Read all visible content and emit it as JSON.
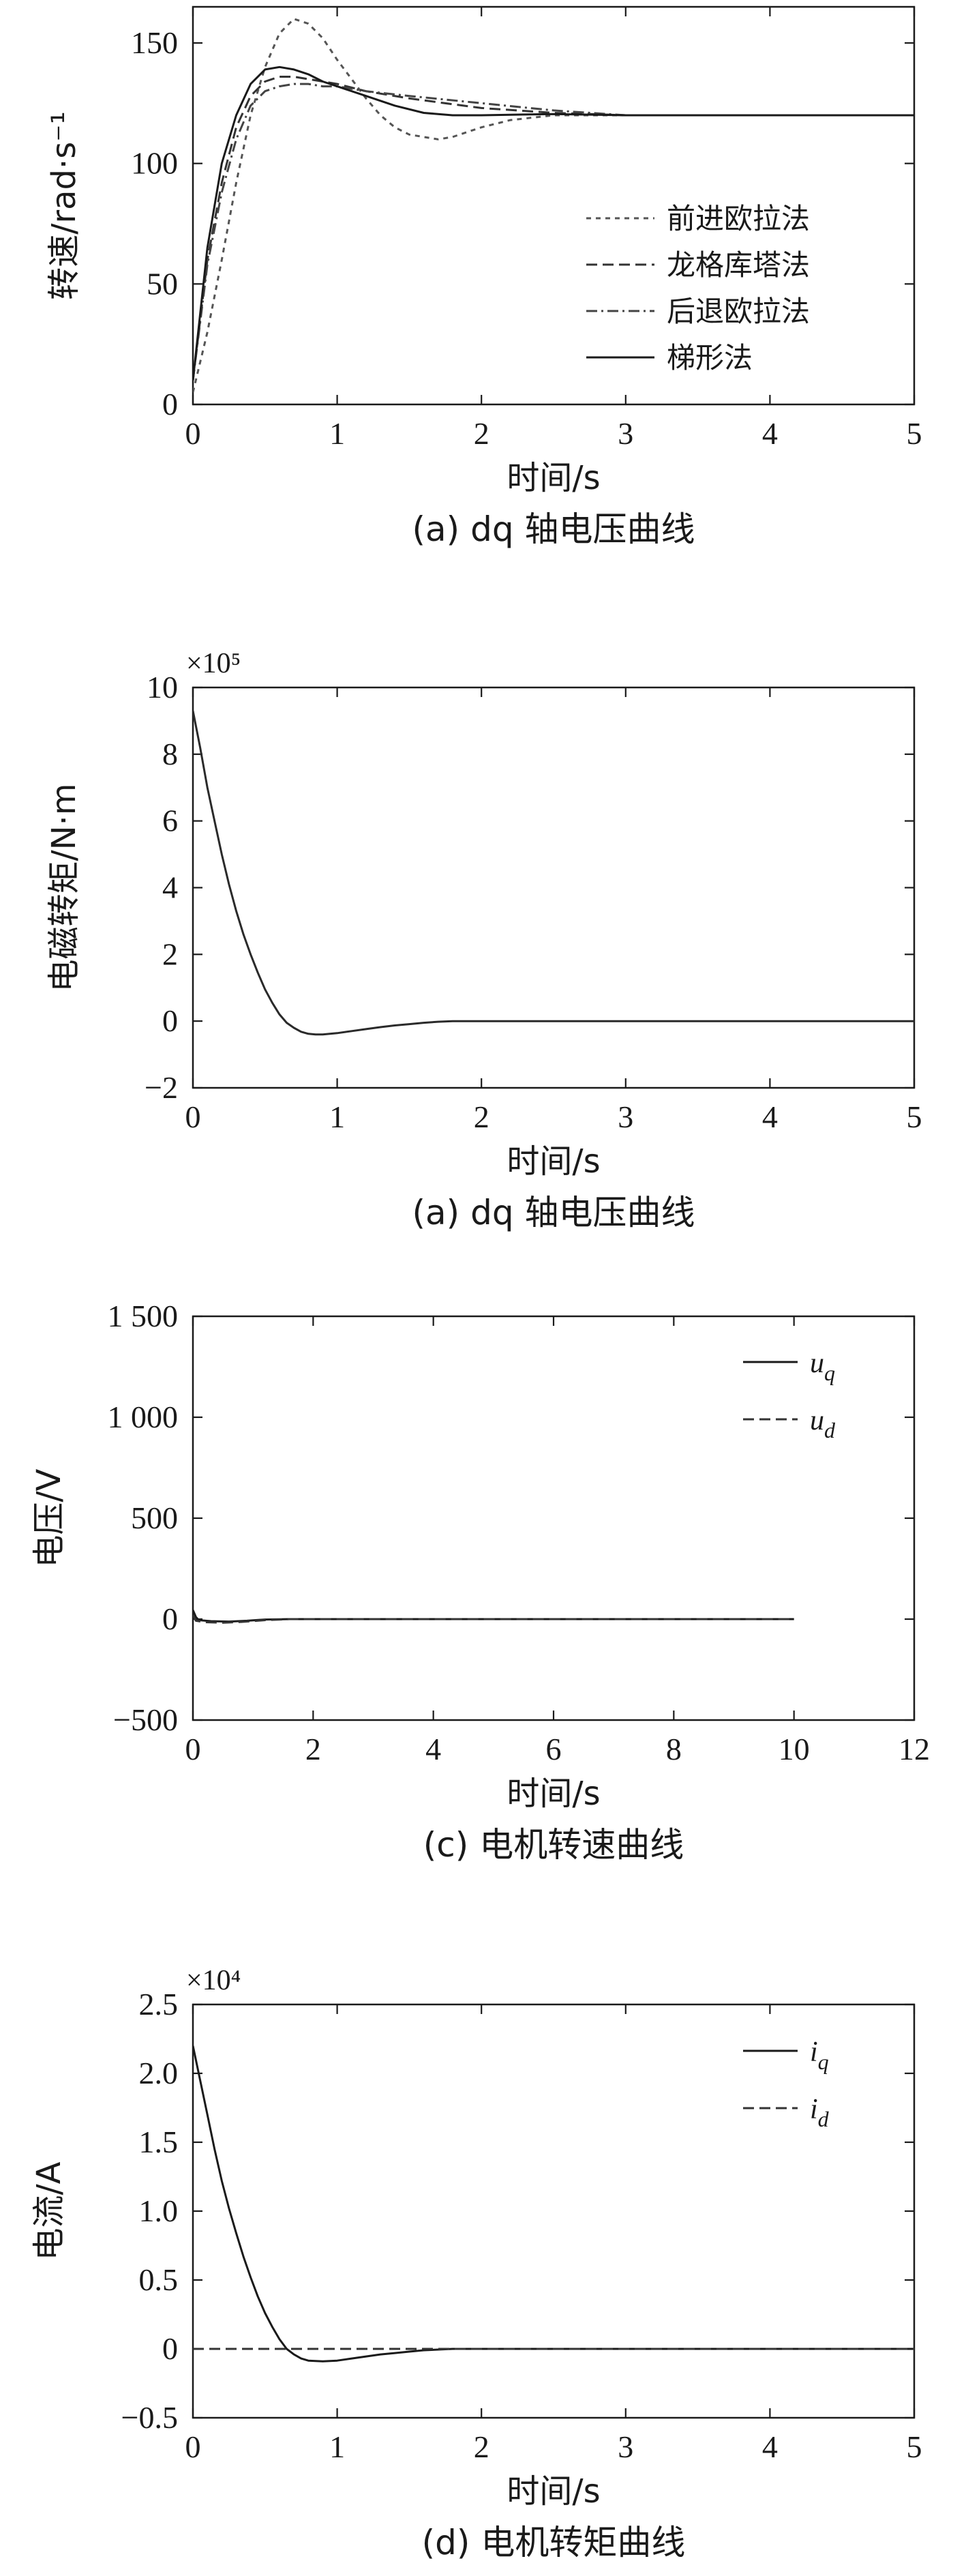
{
  "chart_data": [
    {
      "type": "line",
      "panel_id": "speed",
      "caption": "(a) dq 轴电压曲线",
      "xlabel": "时间/s",
      "ylabel": "转速/rad·s⁻¹",
      "xlim": [
        0,
        5
      ],
      "ylim": [
        0,
        165
      ],
      "xticks": [
        "0",
        "1",
        "2",
        "3",
        "4",
        "5"
      ],
      "xtick_values": [
        0,
        1,
        2,
        3,
        4,
        5
      ],
      "yticks": [
        "0",
        "50",
        "100",
        "150"
      ],
      "ytick_values": [
        0,
        50,
        100,
        150
      ],
      "exponent": "",
      "legend_position": "right",
      "series": [
        {
          "name": "前进欧拉法",
          "dash": "7 7",
          "color": "#555555",
          "x_end": 5,
          "points": [
            [
              0,
              5
            ],
            [
              0.1,
              30
            ],
            [
              0.2,
              60
            ],
            [
              0.3,
              92
            ],
            [
              0.4,
              120
            ],
            [
              0.5,
              140
            ],
            [
              0.6,
              154
            ],
            [
              0.7,
              160
            ],
            [
              0.8,
              158
            ],
            [
              0.9,
              152
            ],
            [
              1.0,
              143
            ],
            [
              1.1,
              135
            ],
            [
              1.2,
              127
            ],
            [
              1.3,
              120
            ],
            [
              1.4,
              115
            ],
            [
              1.5,
              112
            ],
            [
              1.6,
              111
            ],
            [
              1.7,
              110
            ],
            [
              1.8,
              111
            ],
            [
              1.9,
              113
            ],
            [
              2.0,
              115
            ],
            [
              2.2,
              118
            ],
            [
              2.5,
              120
            ],
            [
              3.0,
              120
            ],
            [
              5.0,
              120
            ]
          ]
        },
        {
          "name": "龙格库塔法",
          "dash": "16 8",
          "color": "#333333",
          "x_end": 5,
          "points": [
            [
              0,
              10
            ],
            [
              0.1,
              60
            ],
            [
              0.2,
              92
            ],
            [
              0.3,
              115
            ],
            [
              0.4,
              128
            ],
            [
              0.5,
              134
            ],
            [
              0.6,
              136
            ],
            [
              0.7,
              136
            ],
            [
              0.8,
              135
            ],
            [
              0.9,
              134
            ],
            [
              1.0,
              133
            ],
            [
              1.2,
              130
            ],
            [
              1.5,
              127
            ],
            [
              2.0,
              123
            ],
            [
              2.5,
              121
            ],
            [
              3.0,
              120
            ],
            [
              5.0,
              120
            ]
          ]
        },
        {
          "name": "后退欧拉法",
          "dash": "16 6 3 6",
          "color": "#444444",
          "x_end": 5,
          "points": [
            [
              0,
              10
            ],
            [
              0.1,
              58
            ],
            [
              0.2,
              88
            ],
            [
              0.3,
              110
            ],
            [
              0.4,
              124
            ],
            [
              0.5,
              130
            ],
            [
              0.6,
              132
            ],
            [
              0.7,
              133
            ],
            [
              0.8,
              133
            ],
            [
              0.9,
              132
            ],
            [
              1.0,
              132
            ],
            [
              1.2,
              130
            ],
            [
              1.5,
              128
            ],
            [
              2.0,
              125
            ],
            [
              2.5,
              122
            ],
            [
              3.0,
              120
            ],
            [
              5.0,
              120
            ]
          ]
        },
        {
          "name": "梯形法",
          "dash": "",
          "color": "#1a1a1a",
          "x_end": 5,
          "points": [
            [
              0,
              10
            ],
            [
              0.1,
              65
            ],
            [
              0.2,
              100
            ],
            [
              0.3,
              120
            ],
            [
              0.4,
              133
            ],
            [
              0.5,
              139
            ],
            [
              0.6,
              140
            ],
            [
              0.7,
              139
            ],
            [
              0.8,
              137
            ],
            [
              0.9,
              134
            ],
            [
              1.0,
              132
            ],
            [
              1.2,
              128
            ],
            [
              1.4,
              124
            ],
            [
              1.6,
              121
            ],
            [
              1.8,
              120
            ],
            [
              2.0,
              120
            ],
            [
              2.5,
              120.5
            ],
            [
              3.0,
              120
            ],
            [
              5.0,
              120
            ]
          ]
        }
      ]
    },
    {
      "type": "line",
      "panel_id": "torque",
      "caption": "(a) dq 轴电压曲线",
      "xlabel": "时间/s",
      "ylabel": "电磁转矩/N·m",
      "xlim": [
        0,
        5
      ],
      "ylim": [
        -2,
        10
      ],
      "xticks": [
        "0",
        "1",
        "2",
        "3",
        "4",
        "5"
      ],
      "xtick_values": [
        0,
        1,
        2,
        3,
        4,
        5
      ],
      "yticks": [
        "−2",
        "0",
        "2",
        "4",
        "6",
        "8",
        "10"
      ],
      "ytick_values": [
        -2,
        0,
        2,
        4,
        6,
        8,
        10
      ],
      "exponent": "×10⁵",
      "legend_position": "none",
      "series": [
        {
          "name": "",
          "dash": "",
          "color": "#2a2a2a",
          "x_end": 5,
          "points": [
            [
              0,
              9.3
            ],
            [
              0.05,
              8.2
            ],
            [
              0.1,
              7.0
            ],
            [
              0.15,
              6.0
            ],
            [
              0.2,
              5.0
            ],
            [
              0.25,
              4.1
            ],
            [
              0.3,
              3.3
            ],
            [
              0.35,
              2.6
            ],
            [
              0.4,
              2.0
            ],
            [
              0.45,
              1.45
            ],
            [
              0.5,
              0.95
            ],
            [
              0.55,
              0.55
            ],
            [
              0.6,
              0.2
            ],
            [
              0.65,
              -0.05
            ],
            [
              0.7,
              -0.2
            ],
            [
              0.75,
              -0.32
            ],
            [
              0.8,
              -0.38
            ],
            [
              0.85,
              -0.4
            ],
            [
              0.9,
              -0.4
            ],
            [
              1.0,
              -0.36
            ],
            [
              1.1,
              -0.3
            ],
            [
              1.2,
              -0.24
            ],
            [
              1.3,
              -0.18
            ],
            [
              1.4,
              -0.13
            ],
            [
              1.5,
              -0.09
            ],
            [
              1.6,
              -0.05
            ],
            [
              1.7,
              -0.02
            ],
            [
              1.8,
              0
            ],
            [
              5.0,
              0
            ]
          ]
        }
      ]
    },
    {
      "type": "line",
      "panel_id": "voltage",
      "caption": "(c) 电机转速曲线",
      "xlabel": "时间/s",
      "ylabel": "电压/V",
      "xlim": [
        0,
        12
      ],
      "ylim": [
        -500,
        1500
      ],
      "xticks": [
        "0",
        "2",
        "4",
        "6",
        "8",
        "10",
        "12"
      ],
      "xtick_values": [
        0,
        2,
        4,
        6,
        8,
        10,
        12
      ],
      "yticks": [
        "−500",
        "0",
        "500",
        "1 000",
        "1 500"
      ],
      "ytick_values": [
        -500,
        0,
        500,
        1000,
        1500
      ],
      "exponent": "",
      "legend_position": "top-right",
      "series": [
        {
          "name": "u",
          "sub": "q",
          "dash": "",
          "color": "#1a1a1a",
          "x_end": 10,
          "points": [
            [
              0,
              45
            ],
            [
              0.05,
              10
            ],
            [
              0.1,
              -5
            ],
            [
              0.3,
              -10
            ],
            [
              0.6,
              -12
            ],
            [
              0.9,
              -8
            ],
            [
              1.2,
              -2
            ],
            [
              1.6,
              0
            ],
            [
              10,
              0
            ]
          ]
        },
        {
          "name": "u",
          "sub": "d",
          "dash": "16 8",
          "color": "#333333",
          "x_end": 10,
          "points": [
            [
              0,
              20
            ],
            [
              0.05,
              -8
            ],
            [
              0.2,
              -15
            ],
            [
              0.5,
              -18
            ],
            [
              0.8,
              -14
            ],
            [
              1.2,
              -5
            ],
            [
              1.6,
              0
            ],
            [
              10,
              0
            ]
          ]
        }
      ]
    },
    {
      "type": "line",
      "panel_id": "current",
      "caption": "(d) 电机转矩曲线",
      "xlabel": "时间/s",
      "ylabel": "电流/A",
      "xlim": [
        0,
        5
      ],
      "ylim": [
        -0.5,
        2.5
      ],
      "xticks": [
        "0",
        "1",
        "2",
        "3",
        "4",
        "5"
      ],
      "xtick_values": [
        0,
        1,
        2,
        3,
        4,
        5
      ],
      "yticks": [
        "−0.5",
        "0",
        "0.5",
        "1.0",
        "1.5",
        "2.0",
        "2.5"
      ],
      "ytick_values": [
        -0.5,
        0,
        0.5,
        1.0,
        1.5,
        2.0,
        2.5
      ],
      "exponent": "×10⁴",
      "legend_position": "top-right",
      "series": [
        {
          "name": "i",
          "sub": "q",
          "dash": "",
          "color": "#1a1a1a",
          "x_end": 5,
          "points": [
            [
              0,
              2.2
            ],
            [
              0.05,
              1.95
            ],
            [
              0.1,
              1.7
            ],
            [
              0.15,
              1.45
            ],
            [
              0.2,
              1.22
            ],
            [
              0.25,
              1.02
            ],
            [
              0.3,
              0.84
            ],
            [
              0.35,
              0.67
            ],
            [
              0.4,
              0.52
            ],
            [
              0.45,
              0.38
            ],
            [
              0.5,
              0.26
            ],
            [
              0.55,
              0.16
            ],
            [
              0.6,
              0.07
            ],
            [
              0.65,
              0.0
            ],
            [
              0.7,
              -0.04
            ],
            [
              0.75,
              -0.07
            ],
            [
              0.8,
              -0.085
            ],
            [
              0.9,
              -0.09
            ],
            [
              1.0,
              -0.085
            ],
            [
              1.1,
              -0.07
            ],
            [
              1.2,
              -0.055
            ],
            [
              1.3,
              -0.04
            ],
            [
              1.4,
              -0.03
            ],
            [
              1.5,
              -0.02
            ],
            [
              1.6,
              -0.01
            ],
            [
              1.7,
              -0.005
            ],
            [
              1.8,
              0
            ],
            [
              5.0,
              0
            ]
          ]
        },
        {
          "name": "i",
          "sub": "d",
          "dash": "16 8",
          "color": "#333333",
          "x_end": 5,
          "points": [
            [
              0,
              0
            ],
            [
              5,
              0
            ]
          ]
        }
      ]
    }
  ]
}
